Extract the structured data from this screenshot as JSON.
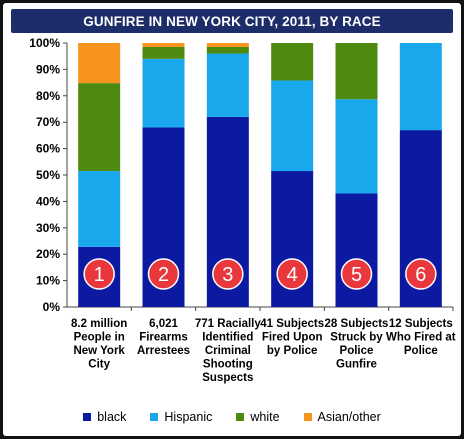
{
  "chart_data": {
    "type": "bar",
    "stacked": true,
    "title": "GUNFIRE IN NEW YORK CITY, 2011, BY RACE",
    "xlabel": "",
    "ylabel": "",
    "ylim": [
      0,
      100
    ],
    "y_ticks": [
      "0%",
      "10%",
      "20%",
      "30%",
      "40%",
      "50%",
      "60%",
      "70%",
      "80%",
      "90%",
      "100%"
    ],
    "grid": false,
    "legend_position": "bottom",
    "categories": [
      [
        "8.2 million",
        "People in",
        "New York",
        "City"
      ],
      [
        "6,021",
        "Firearms",
        "Arrestees"
      ],
      [
        "771 Racially",
        "Identified",
        "Criminal",
        "Shooting",
        "Suspects"
      ],
      [
        "41 Subjects",
        "Fired Upon",
        "by Police"
      ],
      [
        "28 Subjects",
        "Struck by",
        "Police",
        "Gunfire"
      ],
      [
        "12 Subjects",
        "Who Fired at",
        "Police"
      ]
    ],
    "bar_badges": [
      "1",
      "2",
      "3",
      "4",
      "5",
      "6"
    ],
    "series": [
      {
        "name": "black",
        "color": "#0b1aa0",
        "values": [
          22.8,
          68,
          72,
          51.5,
          43,
          67
        ]
      },
      {
        "name": "Hispanic",
        "color": "#1aa8ec",
        "values": [
          28.7,
          26,
          24,
          34.3,
          35.7,
          33
        ]
      },
      {
        "name": "white",
        "color": "#4f8a10",
        "values": [
          33.3,
          4.5,
          2.5,
          14.2,
          21.3,
          0
        ]
      },
      {
        "name": "Asian/other",
        "color": "#f7941d",
        "values": [
          15.2,
          1.5,
          1.5,
          0,
          0,
          0
        ]
      }
    ],
    "badge_color": "#e8383d"
  }
}
